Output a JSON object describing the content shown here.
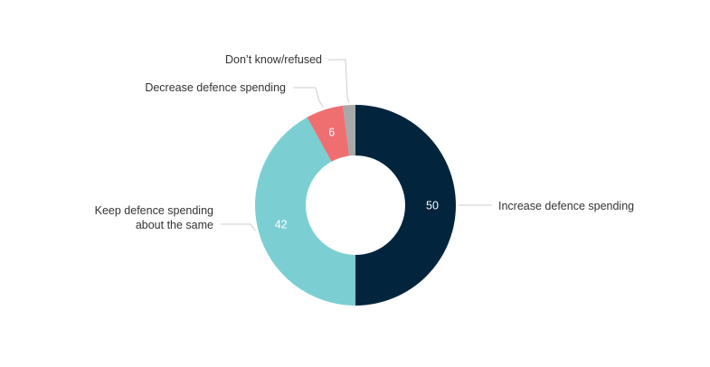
{
  "chart_data": {
    "type": "pie",
    "variant": "donut",
    "title": "",
    "slices": [
      {
        "label": "Increase defence spending",
        "value": 50,
        "value_label": "50",
        "color": "#02253d",
        "text_color": "#ffffff"
      },
      {
        "label": "Keep defence spending about the same",
        "label_lines": [
          "Keep defence spending",
          "about the same"
        ],
        "value": 42,
        "value_label": "42",
        "color": "#7bcfd3",
        "text_color": "#ffffff"
      },
      {
        "label": "Decrease defence spending",
        "value": 6,
        "value_label": "6",
        "color": "#ef6f70",
        "text_color": "#ffffff"
      },
      {
        "label": "Don’t know/refused",
        "value": 2,
        "value_label": "",
        "color": "#a7a9ab",
        "text_color": "#ffffff"
      }
    ]
  }
}
